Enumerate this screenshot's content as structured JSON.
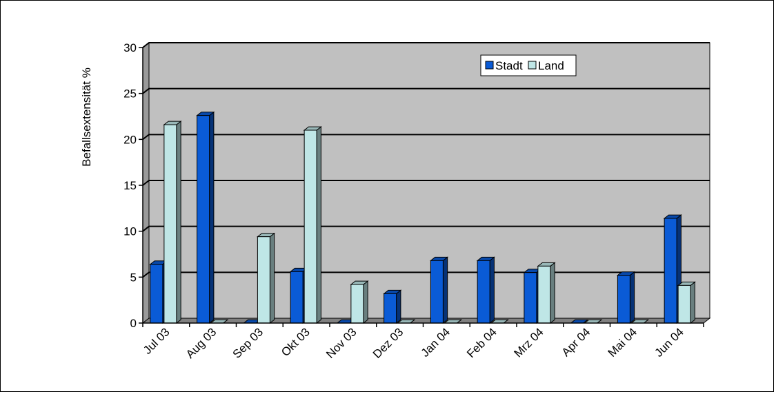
{
  "chart_data": {
    "type": "bar",
    "categories": [
      "Jul 03",
      "Aug 03",
      "Sep 03",
      "Okt 03",
      "Nov 03",
      "Dez 03",
      "Jan 04",
      "Feb 04",
      "Mrz 04",
      "Apr 04",
      "Mai 04",
      "Jun 04"
    ],
    "series": [
      {
        "name": "Stadt",
        "values": [
          6.4,
          22.6,
          0,
          5.6,
          0,
          3.2,
          6.8,
          6.8,
          5.5,
          0,
          5.2,
          11.4
        ],
        "color": "#0a5bd6"
      },
      {
        "name": "Land",
        "values": [
          21.6,
          0,
          9.4,
          21.0,
          4.2,
          0,
          0,
          0,
          6.2,
          0,
          0,
          4.1
        ],
        "color": "#bfe6e6"
      }
    ],
    "ylabel": "Befallsextensität %",
    "xlabel": "",
    "ylim": [
      0,
      30
    ],
    "yticks": [
      0,
      5,
      10,
      15,
      20,
      25,
      30
    ],
    "grid": true,
    "legend_position": "top-right",
    "plot_background": "#c0c0c0"
  }
}
